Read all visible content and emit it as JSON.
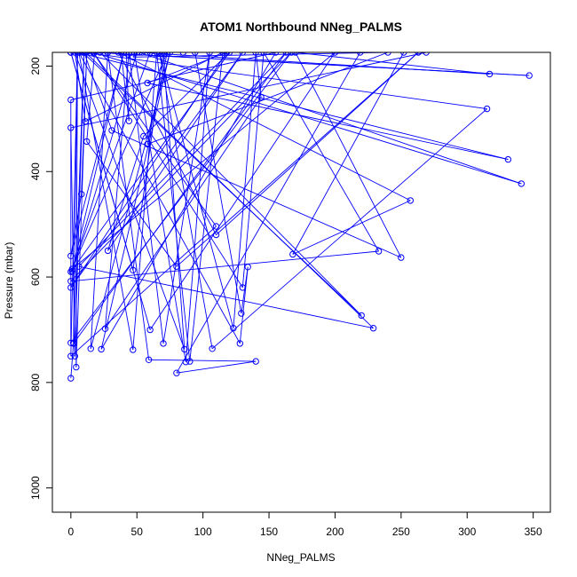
{
  "chart_data": {
    "type": "line",
    "title": "ATOM1 Northbound NNeg_PALMS",
    "xlabel": "NNeg_PALMS",
    "ylabel": "Pressure (mbar)",
    "xlim": [
      -14,
      363
    ],
    "ylim": [
      1046,
      174
    ],
    "y_reversed": true,
    "x_ticks": [
      0,
      50,
      100,
      150,
      200,
      250,
      300,
      350
    ],
    "y_ticks": [
      200,
      400,
      600,
      800,
      1000
    ],
    "grid": false,
    "legend": "none",
    "series_color": "#0000ff",
    "series": [
      {
        "marker": "open-circle",
        "points": [
          [
            0,
            792
          ],
          [
            2,
            725
          ],
          [
            5,
            172
          ],
          [
            4,
            771
          ],
          [
            12,
            173
          ],
          [
            8,
            443
          ],
          [
            0,
            560
          ],
          [
            40,
            174
          ],
          [
            1,
            589
          ],
          [
            50,
            174
          ],
          [
            47,
            183
          ],
          [
            240,
            174
          ],
          [
            58,
            348
          ],
          [
            73,
            174
          ],
          [
            0,
            590
          ],
          [
            120,
            174
          ],
          [
            55,
            333
          ],
          [
            28,
            550
          ],
          [
            130,
            174
          ],
          [
            0,
            620
          ],
          [
            118,
            174
          ],
          [
            58,
            232
          ],
          [
            331,
            377
          ],
          [
            5,
            174
          ],
          [
            0,
            750
          ],
          [
            110,
            504
          ],
          [
            17,
            174
          ],
          [
            130,
            620
          ],
          [
            146,
            174
          ],
          [
            233,
            551
          ],
          [
            0,
            608
          ],
          [
            167,
            174
          ],
          [
            0,
            725
          ],
          [
            0,
            264
          ],
          [
            155,
            174
          ],
          [
            23,
            737
          ],
          [
            75,
            174
          ],
          [
            15,
            736
          ],
          [
            28,
            174
          ],
          [
            59,
            757
          ],
          [
            140,
            760
          ],
          [
            80,
            782
          ],
          [
            219,
            174
          ],
          [
            269,
            174
          ],
          [
            0,
            317
          ],
          [
            3,
            750
          ],
          [
            10,
            174
          ],
          [
            252,
            174
          ],
          [
            168,
            557
          ],
          [
            257,
            455
          ],
          [
            36,
            174
          ],
          [
            110,
            520
          ],
          [
            263,
            174
          ],
          [
            80,
            580
          ],
          [
            12,
            343
          ],
          [
            18,
            174
          ],
          [
            347,
            218
          ],
          [
            17,
            174
          ],
          [
            341,
            423
          ],
          [
            52,
            174
          ],
          [
            317,
            215
          ],
          [
            170,
            174
          ],
          [
            250,
            563
          ],
          [
            31,
            322
          ],
          [
            10,
            174
          ],
          [
            2,
            726
          ],
          [
            163,
            174
          ],
          [
            6,
            580
          ],
          [
            229,
            697
          ],
          [
            11,
            174
          ],
          [
            315,
            281
          ],
          [
            107,
            736
          ],
          [
            67,
            174
          ],
          [
            123,
            697
          ],
          [
            140,
            174
          ],
          [
            144,
            259
          ],
          [
            26,
            698
          ],
          [
            44,
            174
          ],
          [
            70,
            726
          ],
          [
            105,
            174
          ],
          [
            87,
            761
          ],
          [
            48,
            174
          ],
          [
            22,
            174
          ],
          [
            220,
            673
          ],
          [
            9,
            174
          ],
          [
            54,
            174
          ],
          [
            94,
            174
          ],
          [
            129,
            669
          ],
          [
            134,
            581
          ],
          [
            128,
            726
          ],
          [
            6,
            174
          ],
          [
            47,
            738
          ],
          [
            65,
            174
          ],
          [
            90,
            760
          ],
          [
            115,
            174
          ],
          [
            11,
            305
          ],
          [
            3,
            174
          ],
          [
            86,
            737
          ],
          [
            70,
            174
          ],
          [
            47,
            587
          ],
          [
            0,
            174
          ],
          [
            60,
            700
          ],
          [
            200,
            174
          ],
          [
            1,
            585
          ],
          [
            60,
            174
          ],
          [
            17,
            174
          ],
          [
            85,
            174
          ],
          [
            38,
            174
          ],
          [
            44,
            304
          ],
          [
            42,
            174
          ],
          [
            0,
            174
          ],
          [
            12,
            174
          ],
          [
            46,
            174
          ],
          [
            17,
            174
          ],
          [
            0,
            174
          ]
        ]
      }
    ]
  }
}
